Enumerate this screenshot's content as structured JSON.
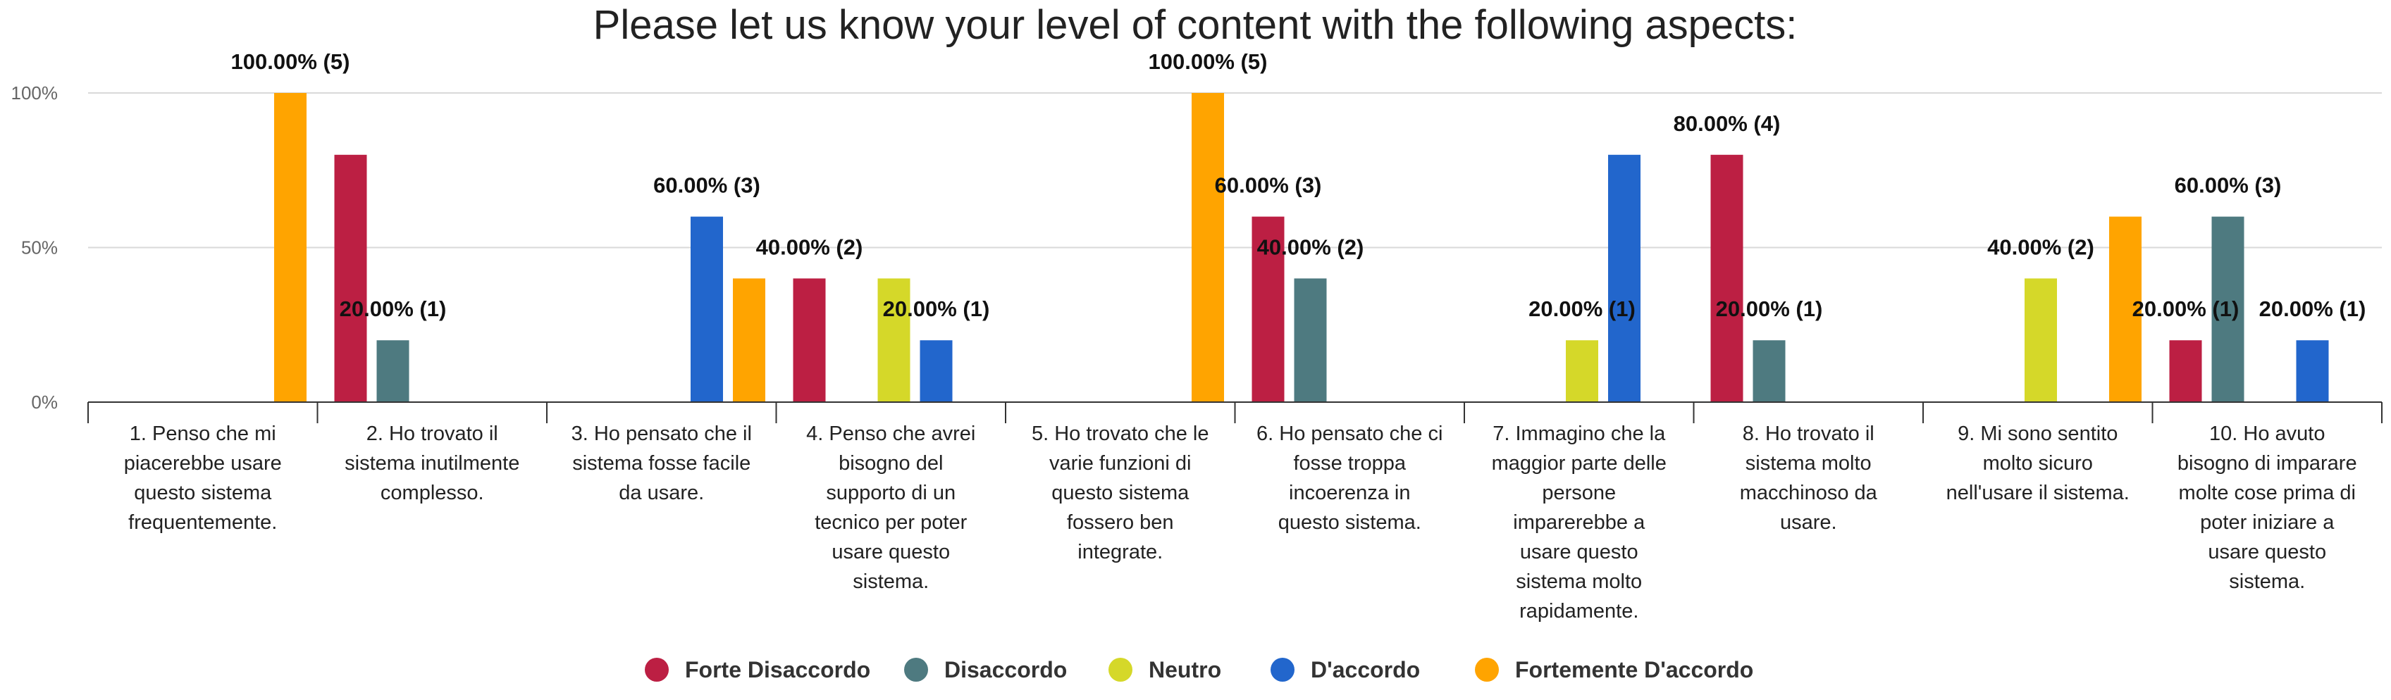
{
  "chart_data": {
    "type": "bar",
    "title": "Please let us know your level of content with the following aspects:",
    "xlabel": "",
    "ylabel": "",
    "ylim": [
      0,
      100
    ],
    "yticks": [
      "0%",
      "50%",
      "100%"
    ],
    "grid": true,
    "legend_position": "bottom",
    "categories": [
      "1. Penso che mi piacerebbe usare questo sistema frequentemente.",
      "2. Ho trovato il sistema inutilmente complesso.",
      "3. Ho pensato che il sistema fosse facile da usare.",
      "4. Penso che avrei bisogno del supporto di un tecnico per poter usare questo sistema.",
      "5. Ho trovato che le varie funzioni di questo sistema fossero ben integrate.",
      "6. Ho pensato che ci fosse troppa incoerenza in questo sistema.",
      "7. Immagino che la maggior parte delle persone imparerebbe a usare questo sistema molto rapidamente.",
      "8. Ho trovato il sistema molto macchinoso da usare.",
      "9. Mi sono sentito molto sicuro nell'usare il sistema.",
      "10. Ho avuto bisogno di imparare molte cose prima di poter iniziare a usare questo sistema."
    ],
    "category_lines": [
      [
        "1. Penso che mi",
        "piacerebbe usare",
        "questo sistema",
        "frequentemente."
      ],
      [
        "2. Ho trovato il",
        "sistema inutilmente",
        "complesso."
      ],
      [
        "3. Ho pensato che il",
        "sistema fosse facile",
        "da usare."
      ],
      [
        "4. Penso che avrei",
        "bisogno del",
        "supporto di un",
        "tecnico per poter",
        "usare questo",
        "sistema."
      ],
      [
        "5. Ho trovato che le",
        "varie funzioni di",
        "questo sistema",
        "fossero ben",
        "integrate."
      ],
      [
        "6. Ho pensato che ci",
        "fosse troppa",
        "incoerenza in",
        "questo sistema."
      ],
      [
        "7. Immagino che la",
        "maggior parte delle",
        "persone",
        "imparerebbe a",
        "usare questo",
        "sistema molto",
        "rapidamente."
      ],
      [
        "8. Ho trovato il",
        "sistema molto",
        "macchinoso da",
        "usare."
      ],
      [
        "9. Mi sono sentito",
        "molto sicuro",
        "nell'usare il sistema."
      ],
      [
        "10. Ho avuto",
        "bisogno di imparare",
        "molte cose prima di",
        "poter iniziare a",
        "usare questo",
        "sistema."
      ]
    ],
    "series": [
      {
        "name": "Forte Disaccordo",
        "color": "#bc1f43",
        "values": [
          0,
          80,
          0,
          40,
          0,
          60,
          0,
          80,
          0,
          20
        ],
        "counts": [
          0,
          4,
          0,
          2,
          0,
          3,
          0,
          4,
          0,
          1
        ]
      },
      {
        "name": "Disaccordo",
        "color": "#4e7a80",
        "values": [
          0,
          20,
          0,
          0,
          0,
          40,
          0,
          20,
          0,
          60
        ],
        "counts": [
          0,
          1,
          0,
          0,
          0,
          2,
          0,
          1,
          0,
          3
        ]
      },
      {
        "name": "Neutro",
        "color": "#d5d829",
        "values": [
          0,
          0,
          0,
          40,
          0,
          0,
          20,
          0,
          40,
          0
        ],
        "counts": [
          0,
          0,
          0,
          2,
          0,
          0,
          1,
          0,
          2,
          0
        ]
      },
      {
        "name": "D'accordo",
        "color": "#2266cc",
        "values": [
          0,
          0,
          60,
          20,
          0,
          0,
          80,
          0,
          0,
          20
        ],
        "counts": [
          0,
          0,
          3,
          1,
          0,
          0,
          4,
          0,
          0,
          1
        ]
      },
      {
        "name": "Fortemente D'accordo",
        "color": "#ffa400",
        "values": [
          100,
          0,
          40,
          0,
          100,
          0,
          0,
          0,
          60,
          0
        ],
        "counts": [
          5,
          0,
          2,
          0,
          5,
          0,
          0,
          0,
          3,
          0
        ]
      }
    ],
    "data_labels": [
      {
        "category": 0,
        "series": 4,
        "text": "100.00% (5)"
      },
      {
        "category": 1,
        "series": 1,
        "text": "20.00% (1)"
      },
      {
        "category": 2,
        "series": 3,
        "text": "60.00% (3)"
      },
      {
        "category": 3,
        "series": 0,
        "text": "40.00% (2)"
      },
      {
        "category": 3,
        "series": 3,
        "text": "20.00% (1)"
      },
      {
        "category": 4,
        "series": 4,
        "text": "100.00% (5)"
      },
      {
        "category": 5,
        "series": 0,
        "text": "60.00% (3)"
      },
      {
        "category": 5,
        "series": 1,
        "text": "40.00% (2)"
      },
      {
        "category": 6,
        "series": 2,
        "text": "20.00% (1)"
      },
      {
        "category": 7,
        "series": 0,
        "text": "80.00% (4)"
      },
      {
        "category": 7,
        "series": 1,
        "text": "20.00% (1)"
      },
      {
        "category": 8,
        "series": 2,
        "text": "40.00% (2)"
      },
      {
        "category": 9,
        "series": 0,
        "text": "20.00% (1)"
      },
      {
        "category": 9,
        "series": 1,
        "text": "60.00% (3)"
      },
      {
        "category": 9,
        "series": 3,
        "text": "20.00% (1)"
      }
    ]
  }
}
